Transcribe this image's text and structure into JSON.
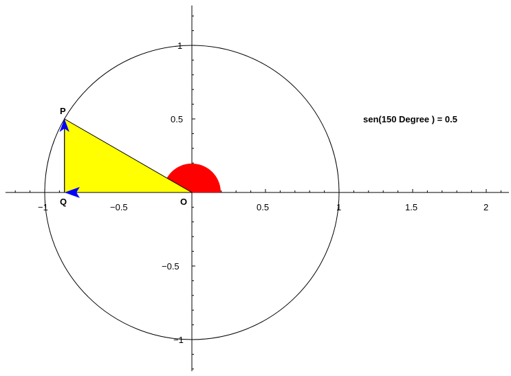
{
  "figure": {
    "annotation": "sen(150 Degree ) = 0.5",
    "angle_degrees": 150,
    "sine_value": 0.5,
    "points": {
      "P": "P",
      "Q": "Q",
      "O": "O"
    },
    "x_tick_labels": [
      "−1",
      "−0.5",
      "0.5",
      "1",
      "1.5",
      "2"
    ],
    "y_tick_labels": [
      "1",
      "0.5",
      "−0.5",
      "−1"
    ],
    "colors": {
      "triangle_fill": "#ffff00",
      "angle_sector": "#ff0000",
      "vectors": "#0000ff",
      "lines": "#000000"
    }
  }
}
